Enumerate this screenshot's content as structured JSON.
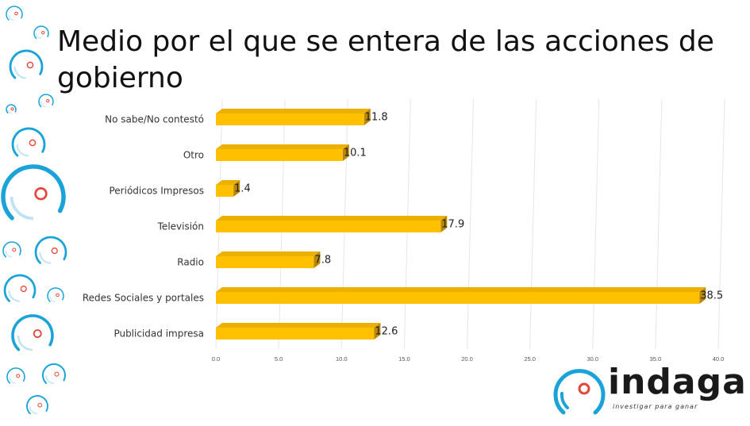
{
  "slide": {
    "title": "Medio por el que se entera de las acciones de gobierno"
  },
  "brand": {
    "name": "indaga",
    "tagline": "investigar para ganar",
    "icon": "indaga-ring-logo-icon"
  },
  "colors": {
    "bar_front": "#FFC000",
    "bar_top": "#EBB000",
    "bar_side": "#B8860B",
    "ring_blue": "#1AA3D9",
    "ring_light": "#BFE3F3",
    "dot_red": "#E5463A",
    "grid": "#E6E6E6"
  },
  "chart_data": {
    "type": "bar",
    "orientation": "horizontal",
    "categories": [
      "No sabe/No contestó",
      "Otro",
      "Periódicos Impresos",
      "Televisión",
      "Radio",
      "Redes Sociales y portales",
      "Publicidad impresa"
    ],
    "values": [
      11.8,
      10.1,
      1.4,
      17.9,
      7.8,
      38.5,
      12.6
    ],
    "data_labels": [
      "11.8",
      "10.1",
      "1.4",
      "17.9",
      "7.8",
      "38.5",
      "12.6"
    ],
    "x_ticks": [
      "0.0",
      "5.0",
      "10.0",
      "15.0",
      "20.0",
      "25.0",
      "30.0",
      "35.0",
      "40.0"
    ],
    "xlim": [
      0,
      40
    ],
    "grid": true,
    "legend": "none",
    "style": "3d"
  }
}
